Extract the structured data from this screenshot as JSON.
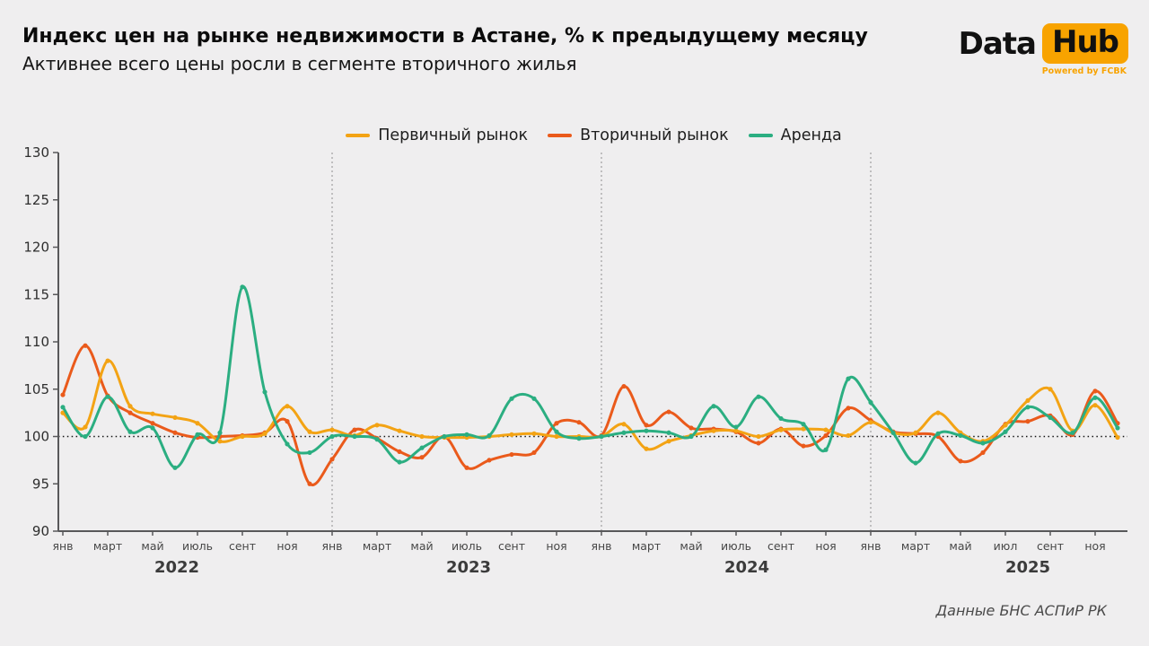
{
  "header": {
    "title": "Индекс цен на рынке недвижимости в Астане, % к предыдущему месяцу",
    "subtitle": "Активнее всего цены росли в сегменте вторичного жилья",
    "logo": {
      "part1": "Data",
      "part2": "Hub",
      "tagline": "Powered by FCBK",
      "accent_color": "#F8A300"
    }
  },
  "source_note": "Данные БНС АСПиР РК",
  "chart_data": {
    "type": "line",
    "frequency": "monthly",
    "start": "2022-01",
    "end": "2025-12",
    "ylim": [
      90,
      130
    ],
    "yticks": [
      90,
      95,
      100,
      105,
      110,
      115,
      120,
      125,
      130
    ],
    "reference_line": 100,
    "grid": "off",
    "legend_position": "top-center",
    "year_dividers_at": [
      "2023-01",
      "2024-01",
      "2025-01"
    ],
    "x_axis": {
      "years": [
        {
          "label": "2022",
          "month_ticks": [
            "янв",
            "март",
            "май",
            "июль",
            "сент",
            "ноя"
          ]
        },
        {
          "label": "2023",
          "month_ticks": [
            "янв",
            "март",
            "май",
            "июль",
            "сент",
            "ноя"
          ]
        },
        {
          "label": "2024",
          "month_ticks": [
            "янв",
            "март",
            "май",
            "июль",
            "сент",
            "ноя"
          ]
        },
        {
          "label": "2025",
          "month_ticks": [
            "янв",
            "март",
            "май",
            "июл",
            "сент",
            "ноя"
          ]
        }
      ]
    },
    "series": [
      {
        "name": "Первичный рынок",
        "color": "#F3A314",
        "values": [
          102.5,
          101.0,
          108.0,
          103.2,
          102.4,
          102.0,
          101.4,
          99.5,
          100.0,
          100.3,
          103.2,
          100.5,
          100.7,
          100.1,
          101.2,
          100.6,
          100.0,
          99.9,
          99.9,
          100.0,
          100.2,
          100.3,
          100.0,
          100.0,
          100.0,
          101.3,
          98.7,
          99.5,
          100.1,
          100.6,
          100.6,
          100.0,
          100.7,
          100.8,
          100.7,
          100.1,
          101.5,
          100.4,
          100.4,
          102.5,
          100.4,
          99.5,
          101.2,
          103.8,
          105.0,
          100.6,
          103.3,
          99.9
        ]
      },
      {
        "name": "Вторичный рынок",
        "color": "#EA5A1B",
        "values": [
          104.4,
          109.6,
          104.3,
          102.5,
          101.4,
          100.4,
          99.9,
          100.0,
          100.1,
          100.4,
          101.6,
          95.0,
          97.6,
          100.7,
          99.8,
          98.4,
          97.8,
          100.0,
          96.7,
          97.5,
          98.1,
          98.3,
          101.4,
          101.5,
          100.1,
          105.3,
          101.2,
          102.6,
          100.9,
          100.8,
          100.5,
          99.3,
          100.8,
          99.0,
          100.1,
          103.0,
          101.7,
          100.5,
          100.3,
          100.0,
          97.4,
          98.3,
          101.3,
          101.6,
          102.2,
          100.2,
          104.8,
          101.4
        ]
      },
      {
        "name": "Аренда",
        "color": "#2BAE81",
        "values": [
          103.1,
          100.0,
          104.2,
          100.5,
          100.9,
          96.7,
          100.2,
          100.4,
          115.8,
          104.7,
          99.2,
          98.3,
          100.0,
          100.0,
          99.7,
          97.3,
          98.8,
          100.0,
          100.2,
          100.1,
          104.0,
          104.0,
          100.5,
          99.8,
          100.0,
          100.4,
          100.6,
          100.4,
          100.0,
          103.2,
          101.0,
          104.2,
          101.9,
          101.3,
          98.6,
          106.1,
          103.6,
          100.4,
          97.2,
          100.3,
          100.1,
          99.3,
          100.5,
          103.1,
          102.0,
          100.4,
          104.1,
          100.9
        ]
      }
    ]
  }
}
